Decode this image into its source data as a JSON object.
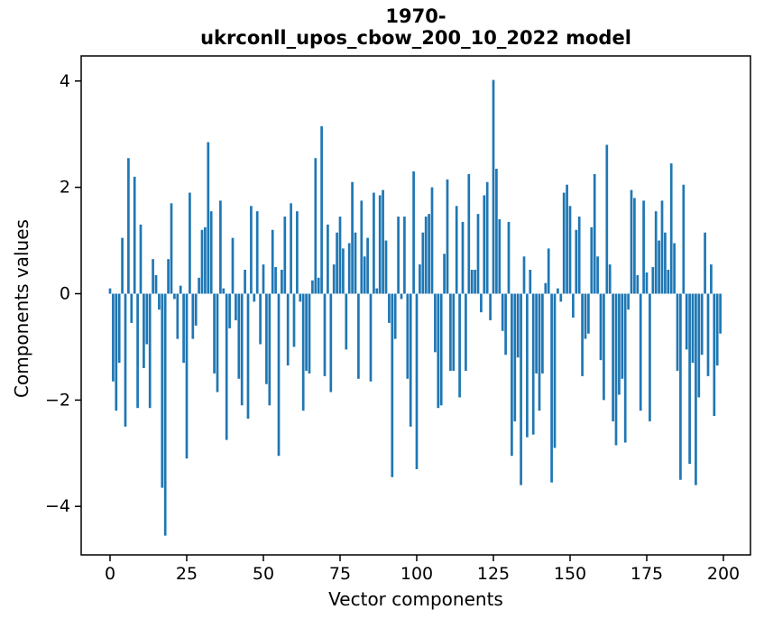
{
  "chart_data": {
    "type": "bar",
    "title_lines": [
      "1970-",
      "ukrconll_upos_cbow_200_10_2022 model"
    ],
    "xlabel": "Vector components",
    "ylabel": "Components values",
    "x_ticks": [
      0,
      25,
      50,
      75,
      100,
      125,
      150,
      175,
      200
    ],
    "y_ticks": [
      -4,
      -2,
      0,
      2,
      4
    ],
    "y_tick_labels": [
      "−4",
      "−2",
      "0",
      "2",
      "4"
    ],
    "xlim": [
      -9.4,
      208.8
    ],
    "ylim": [
      -4.91,
      4.47
    ],
    "bar_color": "#1f77b4",
    "grid": false,
    "legend": "none",
    "x_is_index": true,
    "values": [
      0.1,
      -1.65,
      -2.2,
      -1.3,
      1.05,
      -2.5,
      2.55,
      -0.55,
      2.2,
      -2.15,
      1.3,
      -1.4,
      -0.95,
      -2.15,
      0.65,
      0.35,
      -0.3,
      -3.65,
      -4.55,
      0.65,
      1.7,
      -0.1,
      -0.85,
      0.15,
      -1.3,
      -3.1,
      1.9,
      -0.85,
      -0.6,
      0.3,
      1.2,
      1.25,
      2.85,
      1.55,
      -1.5,
      -1.85,
      1.75,
      0.1,
      -2.75,
      -0.65,
      1.05,
      -0.5,
      -1.6,
      -2.1,
      0.45,
      -2.35,
      1.65,
      -0.15,
      1.55,
      -0.95,
      0.55,
      -1.7,
      -2.1,
      1.2,
      0.5,
      -3.05,
      0.45,
      1.45,
      -1.35,
      1.7,
      -1.0,
      1.55,
      -0.15,
      -2.2,
      -1.45,
      -1.5,
      0.25,
      2.55,
      0.3,
      3.15,
      -1.55,
      1.3,
      -1.85,
      0.55,
      1.15,
      1.45,
      0.85,
      -1.05,
      0.95,
      2.1,
      1.15,
      -1.6,
      1.75,
      0.7,
      1.05,
      -1.65,
      1.9,
      0.1,
      1.85,
      1.95,
      1.0,
      -0.55,
      -3.45,
      -0.85,
      1.45,
      -0.1,
      1.45,
      -1.6,
      -2.5,
      2.3,
      -3.3,
      0.55,
      1.15,
      1.45,
      1.5,
      2.0,
      -1.1,
      -2.15,
      -2.1,
      0.75,
      2.15,
      -1.45,
      -1.45,
      1.65,
      -1.95,
      1.35,
      -1.45,
      2.25,
      0.45,
      0.45,
      1.5,
      -0.35,
      1.85,
      2.1,
      -0.5,
      4.02,
      2.35,
      1.4,
      -0.7,
      -1.15,
      1.35,
      -3.05,
      -2.4,
      -1.2,
      -3.6,
      0.7,
      -2.7,
      0.45,
      -2.65,
      -1.5,
      -2.2,
      -1.5,
      0.2,
      0.85,
      -3.55,
      -2.9,
      0.1,
      -0.15,
      1.9,
      2.05,
      1.65,
      -0.45,
      1.2,
      1.45,
      -1.55,
      -0.85,
      -0.75,
      1.25,
      2.25,
      0.7,
      -1.25,
      -2.0,
      2.8,
      0.55,
      -2.4,
      -2.85,
      -1.9,
      -1.6,
      -2.8,
      -0.3,
      1.95,
      1.8,
      0.35,
      -2.2,
      1.75,
      0.4,
      -2.4,
      0.5,
      1.55,
      1.0,
      1.75,
      1.15,
      0.45,
      2.45,
      0.95,
      -1.45,
      -3.5,
      2.05,
      -1.05,
      -3.2,
      -1.3,
      -3.6,
      -1.95,
      -1.15,
      1.15,
      -1.55,
      0.55,
      -2.3,
      -1.35,
      -0.75
    ]
  }
}
